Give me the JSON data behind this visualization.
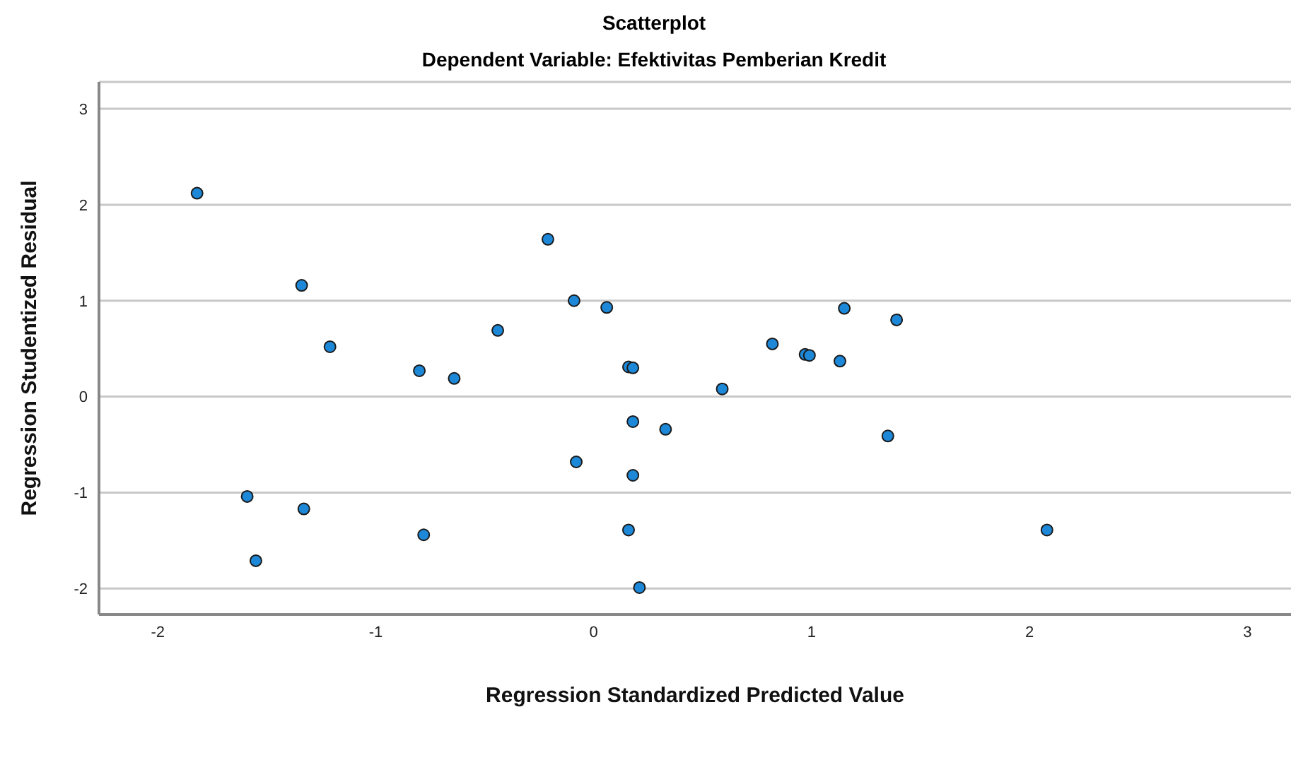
{
  "chart_data": {
    "type": "scatter",
    "title": "Scatterplot",
    "subtitle": "Dependent Variable: Efektivitas Pemberian Kredit",
    "xlabel": "Regression Standardized Predicted Value",
    "ylabel": "Regression Studentized Residual",
    "x": [
      -1.82,
      -0.21,
      -1.34,
      -0.09,
      0.06,
      1.15,
      1.39,
      -0.44,
      -1.21,
      0.82,
      0.97,
      0.99,
      1.13,
      -0.8,
      -0.64,
      0.16,
      0.18,
      0.59,
      0.18,
      0.33,
      1.35,
      -0.08,
      0.18,
      -1.59,
      -1.33,
      -0.78,
      0.16,
      2.08,
      -1.55,
      0.21
    ],
    "values": [
      2.12,
      1.64,
      1.16,
      1.0,
      0.93,
      0.92,
      0.8,
      0.69,
      0.52,
      0.55,
      0.44,
      0.43,
      0.37,
      0.27,
      0.19,
      0.31,
      0.3,
      0.08,
      -0.26,
      -0.34,
      -0.41,
      -0.68,
      -0.82,
      -1.04,
      -1.17,
      -1.44,
      -1.39,
      -1.39,
      -1.71,
      -1.99
    ],
    "color": "#1e88d8",
    "marker": "circle",
    "grid": "y",
    "xlim": [
      -2.27,
      3.2
    ],
    "ylim": [
      -2.27,
      3.28
    ],
    "xticks": [
      -2,
      -1,
      0,
      1,
      2,
      3
    ],
    "yticks": [
      -2,
      -1,
      0,
      1,
      2,
      3
    ]
  }
}
